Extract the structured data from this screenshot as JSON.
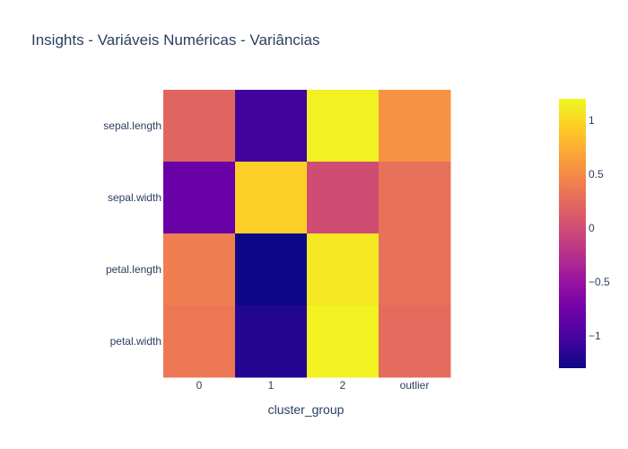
{
  "chart_data": {
    "type": "heatmap",
    "title": "Insights - Variáveis Numéricas - Variâncias",
    "xlabel": "cluster_group",
    "ylabel": "",
    "x": [
      "0",
      "1",
      "2",
      "outlier"
    ],
    "y": [
      "sepal.length",
      "sepal.width",
      "petal.length",
      "petal.width"
    ],
    "z": [
      [
        0.2,
        -1.05,
        1.15,
        0.55
      ],
      [
        -0.8,
        0.95,
        0.0,
        0.3
      ],
      [
        0.4,
        -1.3,
        1.1,
        0.3
      ],
      [
        0.35,
        -1.2,
        1.15,
        0.25
      ]
    ],
    "zmin": -1.3,
    "zmax": 1.2,
    "colorbar_ticks": [
      1,
      0.5,
      0,
      -0.5,
      -1
    ],
    "colorbar_tick_labels": [
      "1",
      "0.5",
      "0",
      "−0.5",
      "−1"
    ],
    "colorscale": [
      "#0d0887",
      "#46039f",
      "#7201a8",
      "#9c179e",
      "#bd3786",
      "#d8576b",
      "#ed7953",
      "#fb9f3a",
      "#fdca26",
      "#f0f921"
    ],
    "grid": false,
    "legend": "colorbar-right"
  }
}
